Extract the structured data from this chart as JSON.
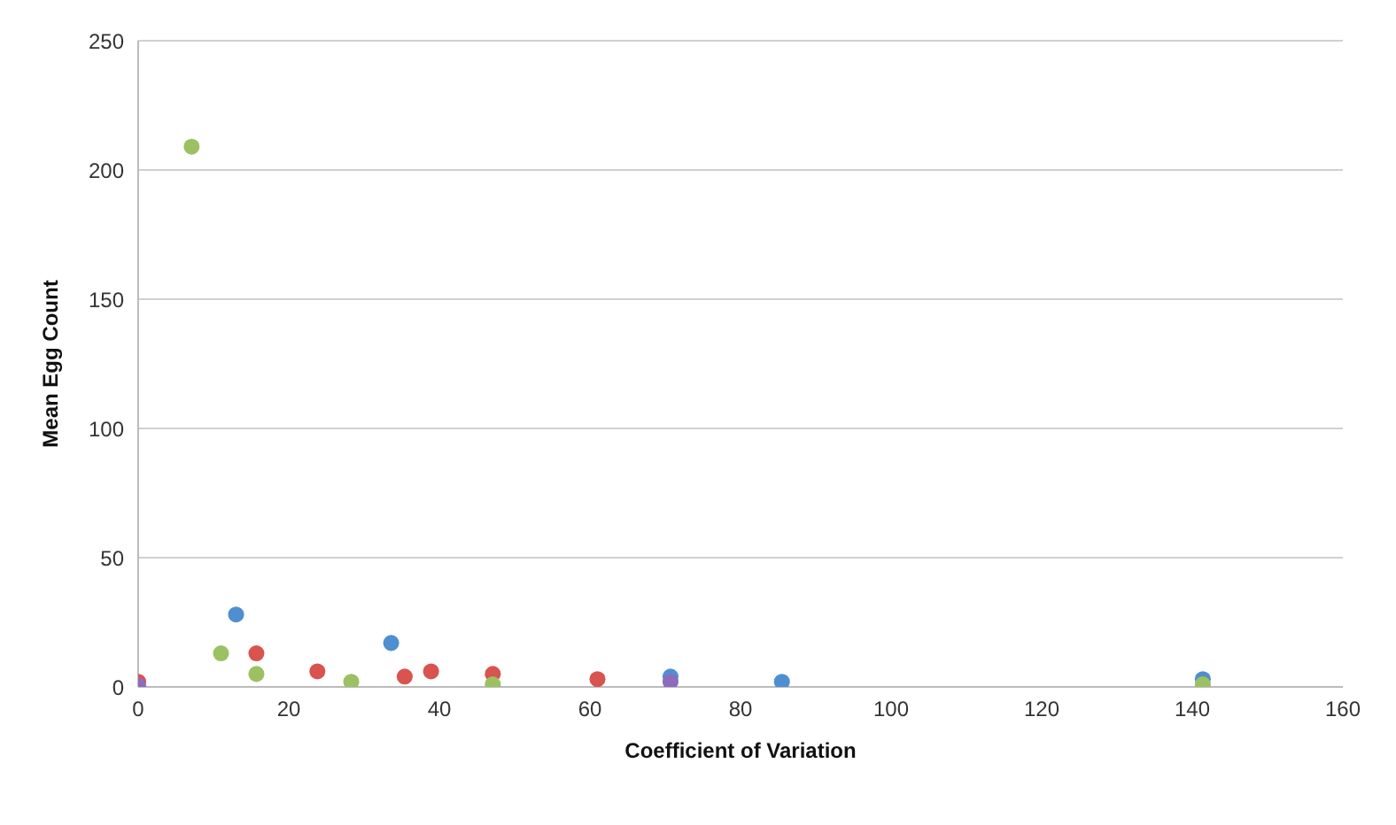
{
  "chart_data": {
    "type": "scatter",
    "xlabel": "Coefficient of Variation",
    "ylabel": "Mean Egg Count",
    "xlim": [
      0,
      160
    ],
    "xticks": [
      0,
      20,
      40,
      60,
      80,
      100,
      120,
      140,
      160
    ],
    "ylim": [
      0,
      250
    ],
    "yticks": [
      0,
      50,
      100,
      150,
      200,
      250
    ],
    "grid": "y",
    "marker": "circle",
    "legend": false,
    "series": [
      {
        "color": "#4f8fcf",
        "x": [
          13,
          33.6,
          70.7,
          85.5,
          141.4
        ],
        "values": [
          28,
          17,
          4,
          2,
          3
        ]
      },
      {
        "color": "#d9534f",
        "x": [
          0,
          15.7,
          23.8,
          35.4,
          38.9,
          47.1,
          61
        ],
        "values": [
          2,
          13,
          6,
          4,
          6,
          5,
          3
        ]
      },
      {
        "color": "#9bc162",
        "x": [
          7.1,
          11,
          15.7,
          28.3,
          47.1,
          141.4
        ],
        "values": [
          209,
          13,
          5,
          2,
          1,
          1
        ]
      },
      {
        "color": "#8e6bbd",
        "x": [
          0,
          70.7
        ],
        "values": [
          0.5,
          2
        ]
      }
    ]
  }
}
